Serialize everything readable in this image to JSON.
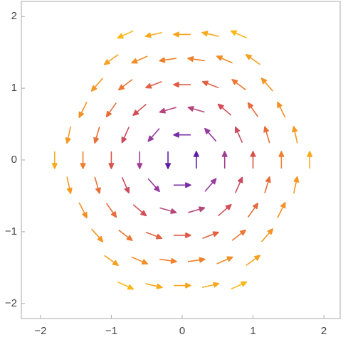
{
  "chart_data": {
    "type": "vector",
    "x": [
      -0.8,
      -0.4,
      0,
      0.4,
      0.8,
      -1,
      -0.6,
      -0.2,
      0.2,
      0.6,
      1,
      -1.2,
      -0.8,
      -0.4,
      0,
      0.4,
      0.8,
      1.2,
      -1.4,
      -1,
      -0.6,
      -0.2,
      0.2,
      0.6,
      1,
      1.4,
      -1.6,
      -1.2,
      -0.8,
      -0.4,
      0,
      0.4,
      0.8,
      1.2,
      1.6,
      -1.8,
      -1.4,
      -1,
      -0.6,
      -0.2,
      0.2,
      0.6,
      1,
      1.4,
      1.8,
      -1.6,
      -1.2,
      -0.8,
      -0.4,
      0,
      0.4,
      0.8,
      1.2,
      1.6,
      -1.4,
      -1,
      -0.6,
      -0.2,
      0.2,
      0.6,
      1,
      1.4,
      -1.2,
      -0.8,
      -0.4,
      0,
      0.4,
      0.8,
      1.2,
      -1,
      -0.6,
      -0.2,
      0.2,
      0.6,
      1,
      -0.8,
      -0.4,
      0,
      0.4,
      0.8
    ],
    "y": [
      1.75,
      1.75,
      1.75,
      1.75,
      1.75,
      1.4,
      1.4,
      1.4,
      1.4,
      1.4,
      1.4,
      1.05,
      1.05,
      1.05,
      1.05,
      1.05,
      1.05,
      1.05,
      0.7,
      0.7,
      0.7,
      0.7,
      0.7,
      0.7,
      0.7,
      0.7,
      0.35,
      0.35,
      0.35,
      0.35,
      0.35,
      0.35,
      0.35,
      0.35,
      0.35,
      0,
      0,
      0,
      0,
      0,
      0,
      0,
      0,
      0,
      0,
      -0.35,
      -0.35,
      -0.35,
      -0.35,
      -0.35,
      -0.35,
      -0.35,
      -0.35,
      -0.35,
      -0.7,
      -0.7,
      -0.7,
      -0.7,
      -0.7,
      -0.7,
      -0.7,
      -0.7,
      -1.05,
      -1.05,
      -1.05,
      -1.05,
      -1.05,
      -1.05,
      -1.05,
      -1.4,
      -1.4,
      -1.4,
      -1.4,
      -1.4,
      -1.4,
      -1.75,
      -1.75,
      -1.75,
      -1.75,
      -1.75
    ],
    "u": [
      -1.75,
      -1.75,
      -1.75,
      -1.75,
      -1.75,
      -1.4,
      -1.4,
      -1.4,
      -1.4,
      -1.4,
      -1.4,
      -1.05,
      -1.05,
      -1.05,
      -1.05,
      -1.05,
      -1.05,
      -1.05,
      -0.7,
      -0.7,
      -0.7,
      -0.7,
      -0.7,
      -0.7,
      -0.7,
      -0.7,
      -0.35,
      -0.35,
      -0.35,
      -0.35,
      -0.35,
      -0.35,
      -0.35,
      -0.35,
      -0.35,
      0,
      0,
      0,
      0,
      0,
      0,
      0,
      0,
      0,
      0,
      0.35,
      0.35,
      0.35,
      0.35,
      0.35,
      0.35,
      0.35,
      0.35,
      0.35,
      0.7,
      0.7,
      0.7,
      0.7,
      0.7,
      0.7,
      0.7,
      0.7,
      1.05,
      1.05,
      1.05,
      1.05,
      1.05,
      1.05,
      1.05,
      1.4,
      1.4,
      1.4,
      1.4,
      1.4,
      1.4,
      1.75,
      1.75,
      1.75,
      1.75,
      1.75
    ],
    "v": [
      -0.8,
      -0.4,
      0,
      0.4,
      0.8,
      -1,
      -0.6,
      -0.2,
      0.2,
      0.6,
      1,
      -1.2,
      -0.8,
      -0.4,
      0,
      0.4,
      0.8,
      1.2,
      -1.4,
      -1,
      -0.6,
      -0.2,
      0.2,
      0.6,
      1,
      1.4,
      -1.6,
      -1.2,
      -0.8,
      -0.4,
      0,
      0.4,
      0.8,
      1.2,
      1.6,
      -1.8,
      -1.4,
      -1,
      -0.6,
      -0.2,
      0.2,
      0.6,
      1,
      1.4,
      1.8,
      -1.6,
      -1.2,
      -0.8,
      -0.4,
      0,
      0.4,
      0.8,
      1.2,
      1.6,
      -1.4,
      -1,
      -0.6,
      -0.2,
      0.2,
      0.6,
      1,
      1.4,
      -1.2,
      -0.8,
      -0.4,
      0,
      0.4,
      0.8,
      1.2,
      -1,
      -0.6,
      -0.2,
      0.2,
      0.6,
      1,
      -0.8,
      -0.4,
      0,
      0.4,
      0.8
    ],
    "color_scale": [
      "#3a0ca3",
      "#8e3aa8",
      "#d9504e",
      "#f2842a",
      "#f9b818"
    ],
    "xlim": [
      -2.27,
      2.23
    ],
    "ylim": [
      -2.21,
      2.21
    ],
    "xticks": [
      {
        "value": -2,
        "label": "−2"
      },
      {
        "value": -1,
        "label": "−1"
      },
      0,
      1,
      2
    ],
    "yticks": [
      {
        "value": -2,
        "label": "−2"
      },
      {
        "value": -1,
        "label": "−1"
      },
      0,
      1,
      2
    ]
  }
}
